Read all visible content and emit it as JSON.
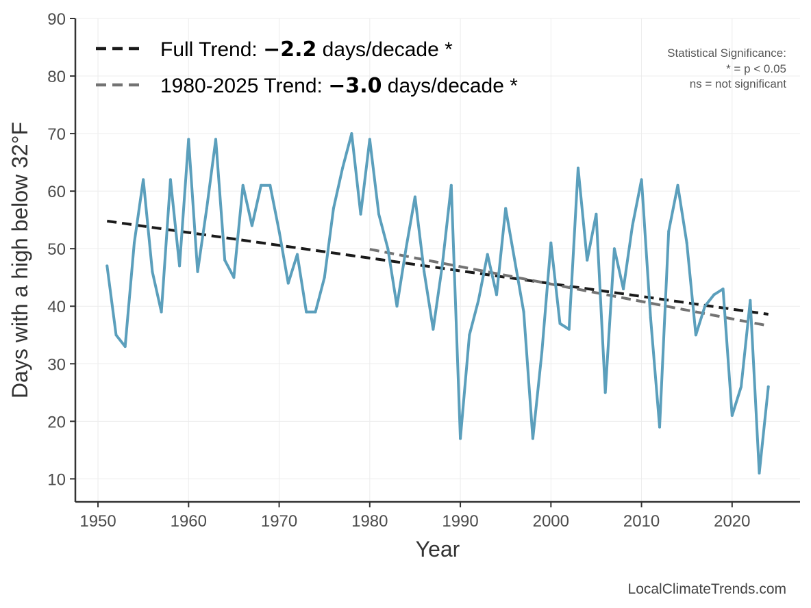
{
  "chart_data": {
    "type": "line",
    "xlabel": "Year",
    "ylabel": "Days with a high below 32°F",
    "xlim": [
      1947.5,
      2027.5
    ],
    "ylim": [
      6,
      90
    ],
    "xticks": [
      1950,
      1960,
      1970,
      1980,
      1990,
      2000,
      2010,
      2020
    ],
    "yticks": [
      10,
      20,
      30,
      40,
      50,
      60,
      70,
      80,
      90
    ],
    "grid": true,
    "series": [
      {
        "name": "Days with a high below 32°F",
        "color": "#5b9fbc",
        "x": [
          1951,
          1952,
          1953,
          1954,
          1955,
          1956,
          1957,
          1958,
          1959,
          1960,
          1961,
          1962,
          1963,
          1964,
          1965,
          1966,
          1967,
          1968,
          1969,
          1970,
          1971,
          1972,
          1973,
          1974,
          1975,
          1976,
          1977,
          1978,
          1979,
          1980,
          1981,
          1982,
          1983,
          1984,
          1985,
          1986,
          1987,
          1988,
          1989,
          1990,
          1991,
          1992,
          1993,
          1994,
          1995,
          1996,
          1997,
          1998,
          1999,
          2000,
          2001,
          2002,
          2003,
          2004,
          2005,
          2006,
          2007,
          2008,
          2009,
          2010,
          2011,
          2012,
          2013,
          2014,
          2015,
          2016,
          2017,
          2018,
          2019,
          2020,
          2021,
          2022,
          2023,
          2024
        ],
        "values": [
          47,
          35,
          33,
          51,
          62,
          46,
          39,
          62,
          47,
          69,
          46,
          57,
          69,
          48,
          45,
          61,
          54,
          61,
          61,
          53,
          44,
          49,
          39,
          39,
          45,
          57,
          64,
          70,
          56,
          69,
          56,
          50,
          40,
          50,
          59,
          46,
          36,
          47,
          61,
          17,
          35,
          41,
          49,
          42,
          57,
          48,
          39,
          17,
          32,
          51,
          37,
          36,
          64,
          48,
          56,
          25,
          50,
          43,
          54,
          62,
          38,
          19,
          53,
          61,
          51,
          35,
          40,
          42,
          43,
          21,
          26,
          41,
          11,
          26
        ]
      }
    ],
    "trends": [
      {
        "name": "Full Trend",
        "color": "#1a1a1a",
        "x": [
          1951,
          2024
        ],
        "values": [
          54.8,
          38.6
        ]
      },
      {
        "name": "1980-2025 Trend",
        "color": "#737373",
        "x": [
          1980,
          2024
        ],
        "values": [
          49.9,
          36.6
        ]
      }
    ],
    "legend": {
      "placement": "top-left",
      "entries": [
        {
          "prefix": "Full Trend: ",
          "value": "−2.2",
          "suffix": " days/decade *",
          "color": "#1a1a1a"
        },
        {
          "prefix": "1980-2025 Trend: ",
          "value": "−3.0",
          "suffix": " days/decade *",
          "color": "#737373"
        }
      ]
    },
    "annotations": {
      "significance": [
        "Statistical Significance:",
        "* = p < 0.05",
        "ns = not significant"
      ],
      "source": "LocalClimateTrends.com"
    }
  }
}
